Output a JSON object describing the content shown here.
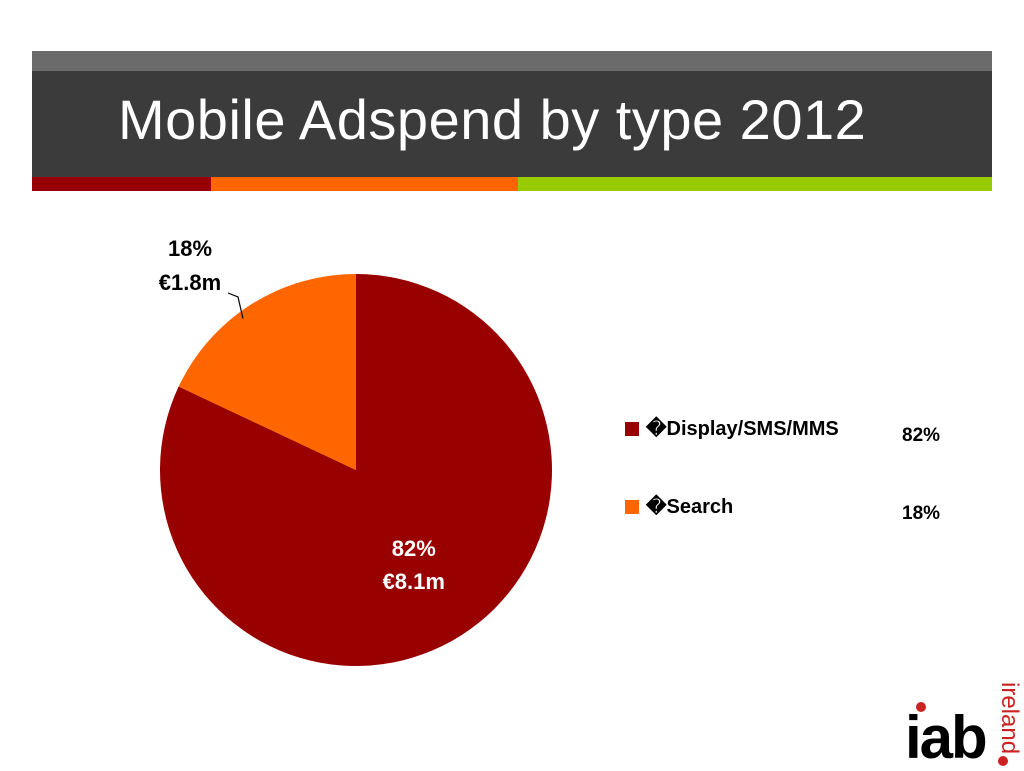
{
  "slide": {
    "title": "Mobile Adspend by type 2012"
  },
  "colors": {
    "display": "#990000",
    "search": "#ff6600",
    "accent_green": "#99cc00",
    "title_bg": "#3b3b3b"
  },
  "chart_data": {
    "type": "pie",
    "title": "",
    "slices": [
      {
        "label": "�Display/SMS/MMS",
        "value": 82,
        "percent_label": "82%",
        "amount_label": "€8.1m",
        "color": "#990000"
      },
      {
        "label": "�Search",
        "value": 18,
        "percent_label": "18%",
        "amount_label": "€1.8m",
        "color": "#ff6600"
      }
    ],
    "legend_placement": "right"
  },
  "legend_values": [
    "82%",
    "18%"
  ],
  "logo": {
    "brand": "iab",
    "sub": "ireland"
  }
}
